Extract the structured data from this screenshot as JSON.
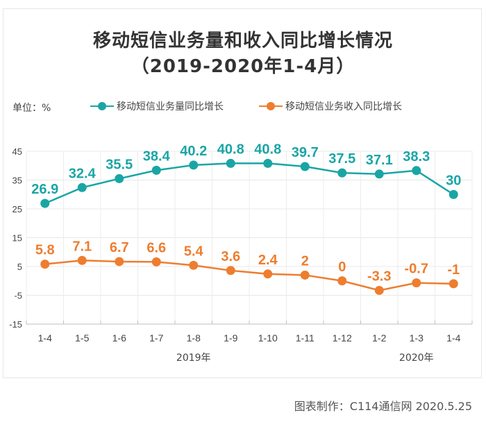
{
  "chart_data": {
    "type": "line",
    "title": "移动短信业务量和收入同比增长情况",
    "subtitle": "（2019-2020年1-4月）",
    "unit_label": "单位：%",
    "xlabel": "",
    "ylabel": "",
    "categories": [
      "1-4",
      "1-5",
      "1-6",
      "1-7",
      "1-8",
      "1-9",
      "1-10",
      "1-11",
      "1-12",
      "1-2",
      "1-3",
      "1-4"
    ],
    "year_groups": [
      {
        "label": "2019年",
        "start": 0,
        "end": 8
      },
      {
        "label": "2020年",
        "start": 9,
        "end": 11
      }
    ],
    "ylim": [
      -15,
      45
    ],
    "yticks": [
      45,
      35,
      25,
      15,
      5,
      -5,
      -15
    ],
    "grid": true,
    "legend_position": "top",
    "series": [
      {
        "name": "移动短信业务量同比增长",
        "color": "#1aa5a5",
        "values": [
          26.9,
          32.4,
          35.5,
          38.4,
          40.2,
          40.8,
          40.8,
          39.7,
          37.5,
          37.1,
          38.3,
          30
        ],
        "labels": [
          "26.9",
          "32.4",
          "35.5",
          "38.4",
          "40.2",
          "40.8",
          "40.8",
          "39.7",
          "37.5",
          "37.1",
          "38.3",
          "30"
        ]
      },
      {
        "name": "移动短信业务收入同比增长",
        "color": "#ee7d2f",
        "values": [
          5.8,
          7.1,
          6.7,
          6.6,
          5.4,
          3.6,
          2.4,
          2,
          0,
          -3.3,
          -0.7,
          -1
        ],
        "labels": [
          "5.8",
          "7.1",
          "6.7",
          "6.6",
          "5.4",
          "3.6",
          "2.4",
          "2",
          "0",
          "-3.3",
          "-0.7",
          "-1"
        ]
      }
    ]
  },
  "footer": "图表制作：C114通信网  2020.5.25",
  "watermark": {
    "text": [
      "通",
      "信",
      "网"
    ],
    "logo": "C114"
  }
}
